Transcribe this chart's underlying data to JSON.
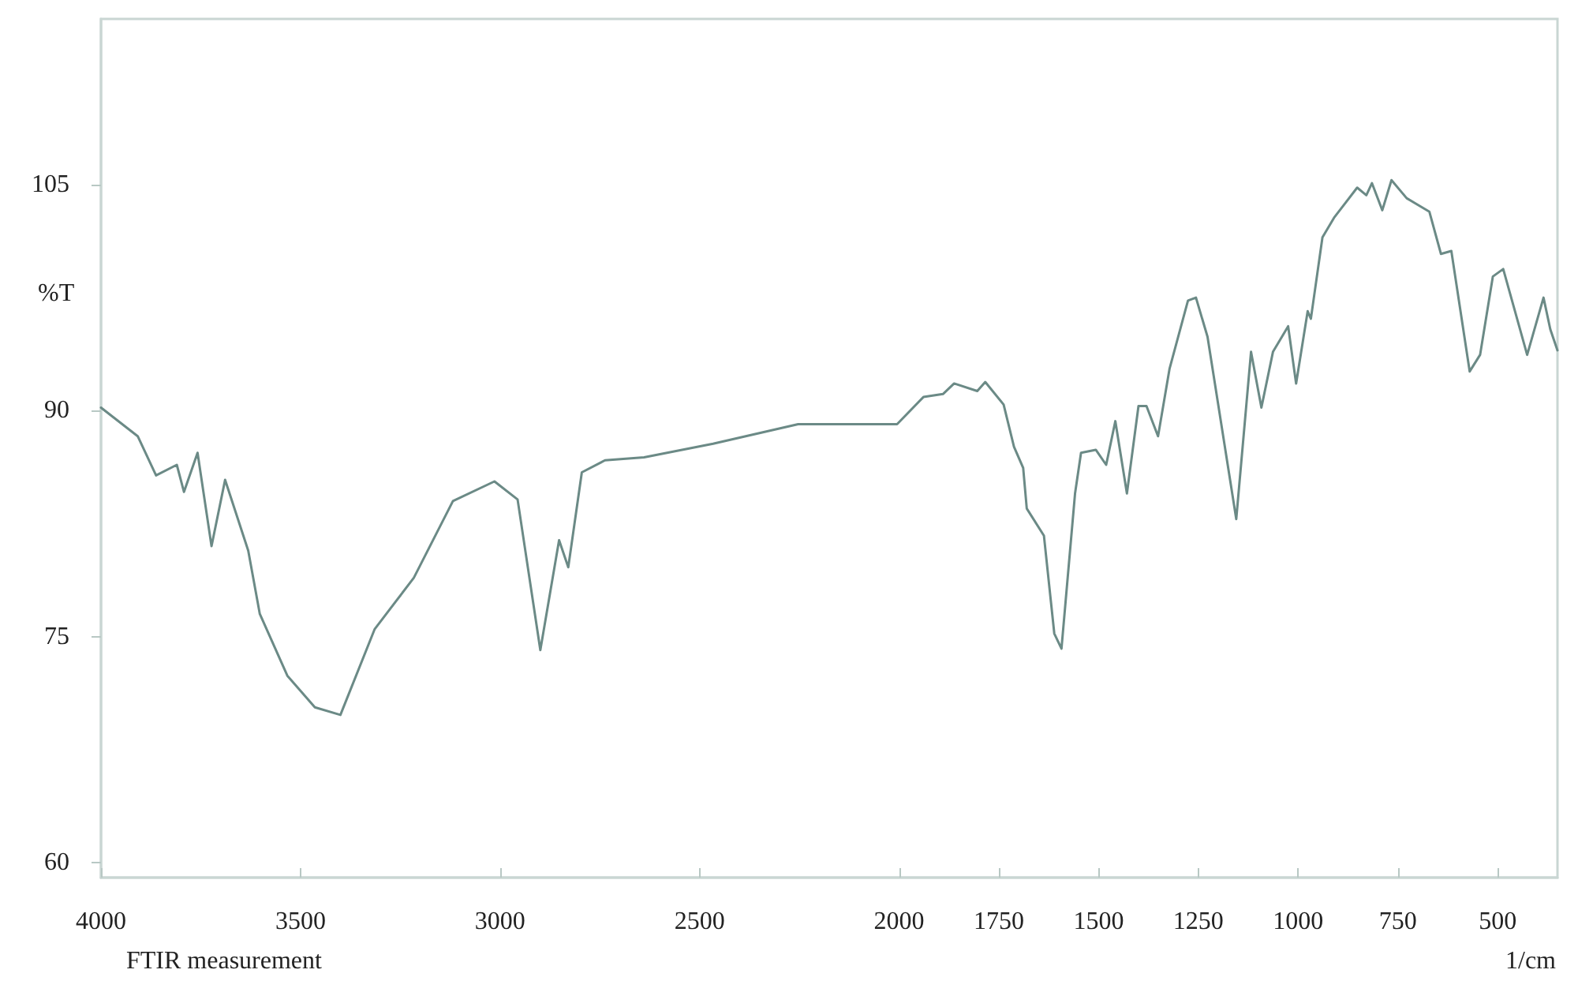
{
  "chart_data": {
    "type": "line",
    "ylabel": "%T",
    "xlabel": "1/cm",
    "annotations": [
      "FTIR measurement"
    ],
    "x": [
      4000,
      3908,
      3862,
      3810,
      3792,
      3758,
      3723,
      3689,
      3631,
      3602,
      3533,
      3464,
      3400,
      3314,
      3216,
      3118,
      3014,
      2956,
      2899,
      2852,
      2829,
      2795,
      2737,
      2639,
      2466,
      2253,
      2005,
      1939,
      1890,
      1862,
      1804,
      1784,
      1738,
      1712,
      1689,
      1680,
      1637,
      1611,
      1593,
      1559,
      1544,
      1507,
      1481,
      1458,
      1429,
      1400,
      1380,
      1351,
      1322,
      1276,
      1256,
      1227,
      1155,
      1118,
      1092,
      1063,
      1025,
      1005,
      976,
      968,
      939,
      910,
      852,
      829,
      815,
      789,
      766,
      728,
      671,
      642,
      616,
      570,
      544,
      512,
      486,
      426,
      385,
      368,
      350
    ],
    "series": [
      {
        "color": "#6b8a86",
        "values": [
          90.2,
          88.3,
          85.7,
          86.4,
          84.6,
          87.2,
          81.0,
          85.4,
          80.7,
          76.5,
          72.4,
          70.3,
          69.8,
          75.5,
          78.9,
          84.0,
          85.3,
          84.1,
          74.1,
          81.4,
          79.6,
          85.9,
          86.7,
          86.9,
          87.8,
          89.1,
          89.1,
          90.9,
          91.1,
          91.8,
          91.3,
          91.9,
          90.4,
          87.6,
          86.2,
          83.5,
          81.7,
          75.2,
          74.2,
          84.5,
          87.2,
          87.4,
          86.4,
          89.3,
          84.5,
          90.3,
          90.3,
          88.3,
          92.8,
          97.3,
          97.5,
          94.9,
          82.8,
          93.9,
          90.2,
          93.9,
          95.6,
          91.8,
          96.6,
          96.1,
          101.5,
          102.8,
          104.8,
          104.3,
          105.1,
          103.3,
          105.3,
          104.1,
          103.2,
          100.4,
          100.6,
          92.6,
          93.7,
          98.9,
          99.4,
          93.7,
          97.5,
          95.4,
          94.0
        ]
      }
    ],
    "xlim": [
      4000,
      350
    ],
    "xticks": [
      4000,
      3500,
      3000,
      2500,
      2000,
      1750,
      1500,
      1250,
      1000,
      750,
      500
    ],
    "ylim": [
      59,
      116
    ],
    "yticks": [
      60,
      75,
      90,
      105
    ],
    "grid": false,
    "marker": "none",
    "line_style": "solid"
  }
}
